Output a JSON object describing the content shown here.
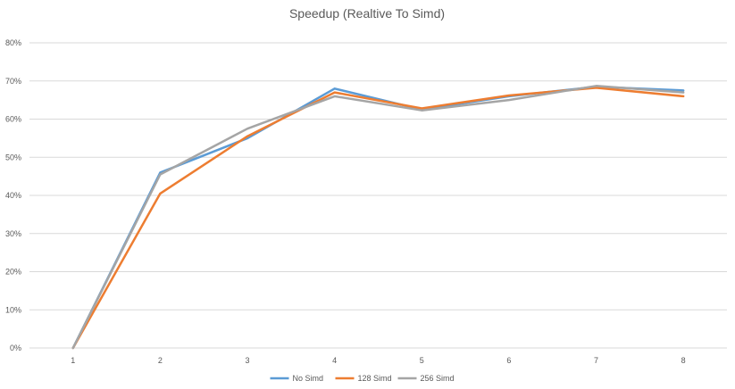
{
  "chart_data": {
    "type": "line",
    "title": "Speedup (Realtive To Simd)",
    "x": [
      "1",
      "2",
      "3",
      "4",
      "5",
      "6",
      "7",
      "8"
    ],
    "yticks": [
      "0%",
      "10%",
      "20%",
      "30%",
      "40%",
      "50%",
      "60%",
      "70%",
      "80%"
    ],
    "ylim": [
      0,
      80
    ],
    "y_unit": "%",
    "grid": true,
    "legend": "bottom",
    "series": [
      {
        "name": "No Simd",
        "color": "#5b9bd5",
        "values": [
          0,
          46,
          55,
          68,
          62.5,
          66,
          68.5,
          67.5
        ]
      },
      {
        "name": "128 Simd",
        "color": "#ed7d31",
        "values": [
          0,
          40.5,
          55.5,
          67,
          62.8,
          66.2,
          68.2,
          66
        ]
      },
      {
        "name": "256 Simd",
        "color": "#a5a5a5",
        "values": [
          0,
          45.5,
          57.5,
          66,
          62.3,
          65,
          68.7,
          67
        ]
      }
    ]
  }
}
